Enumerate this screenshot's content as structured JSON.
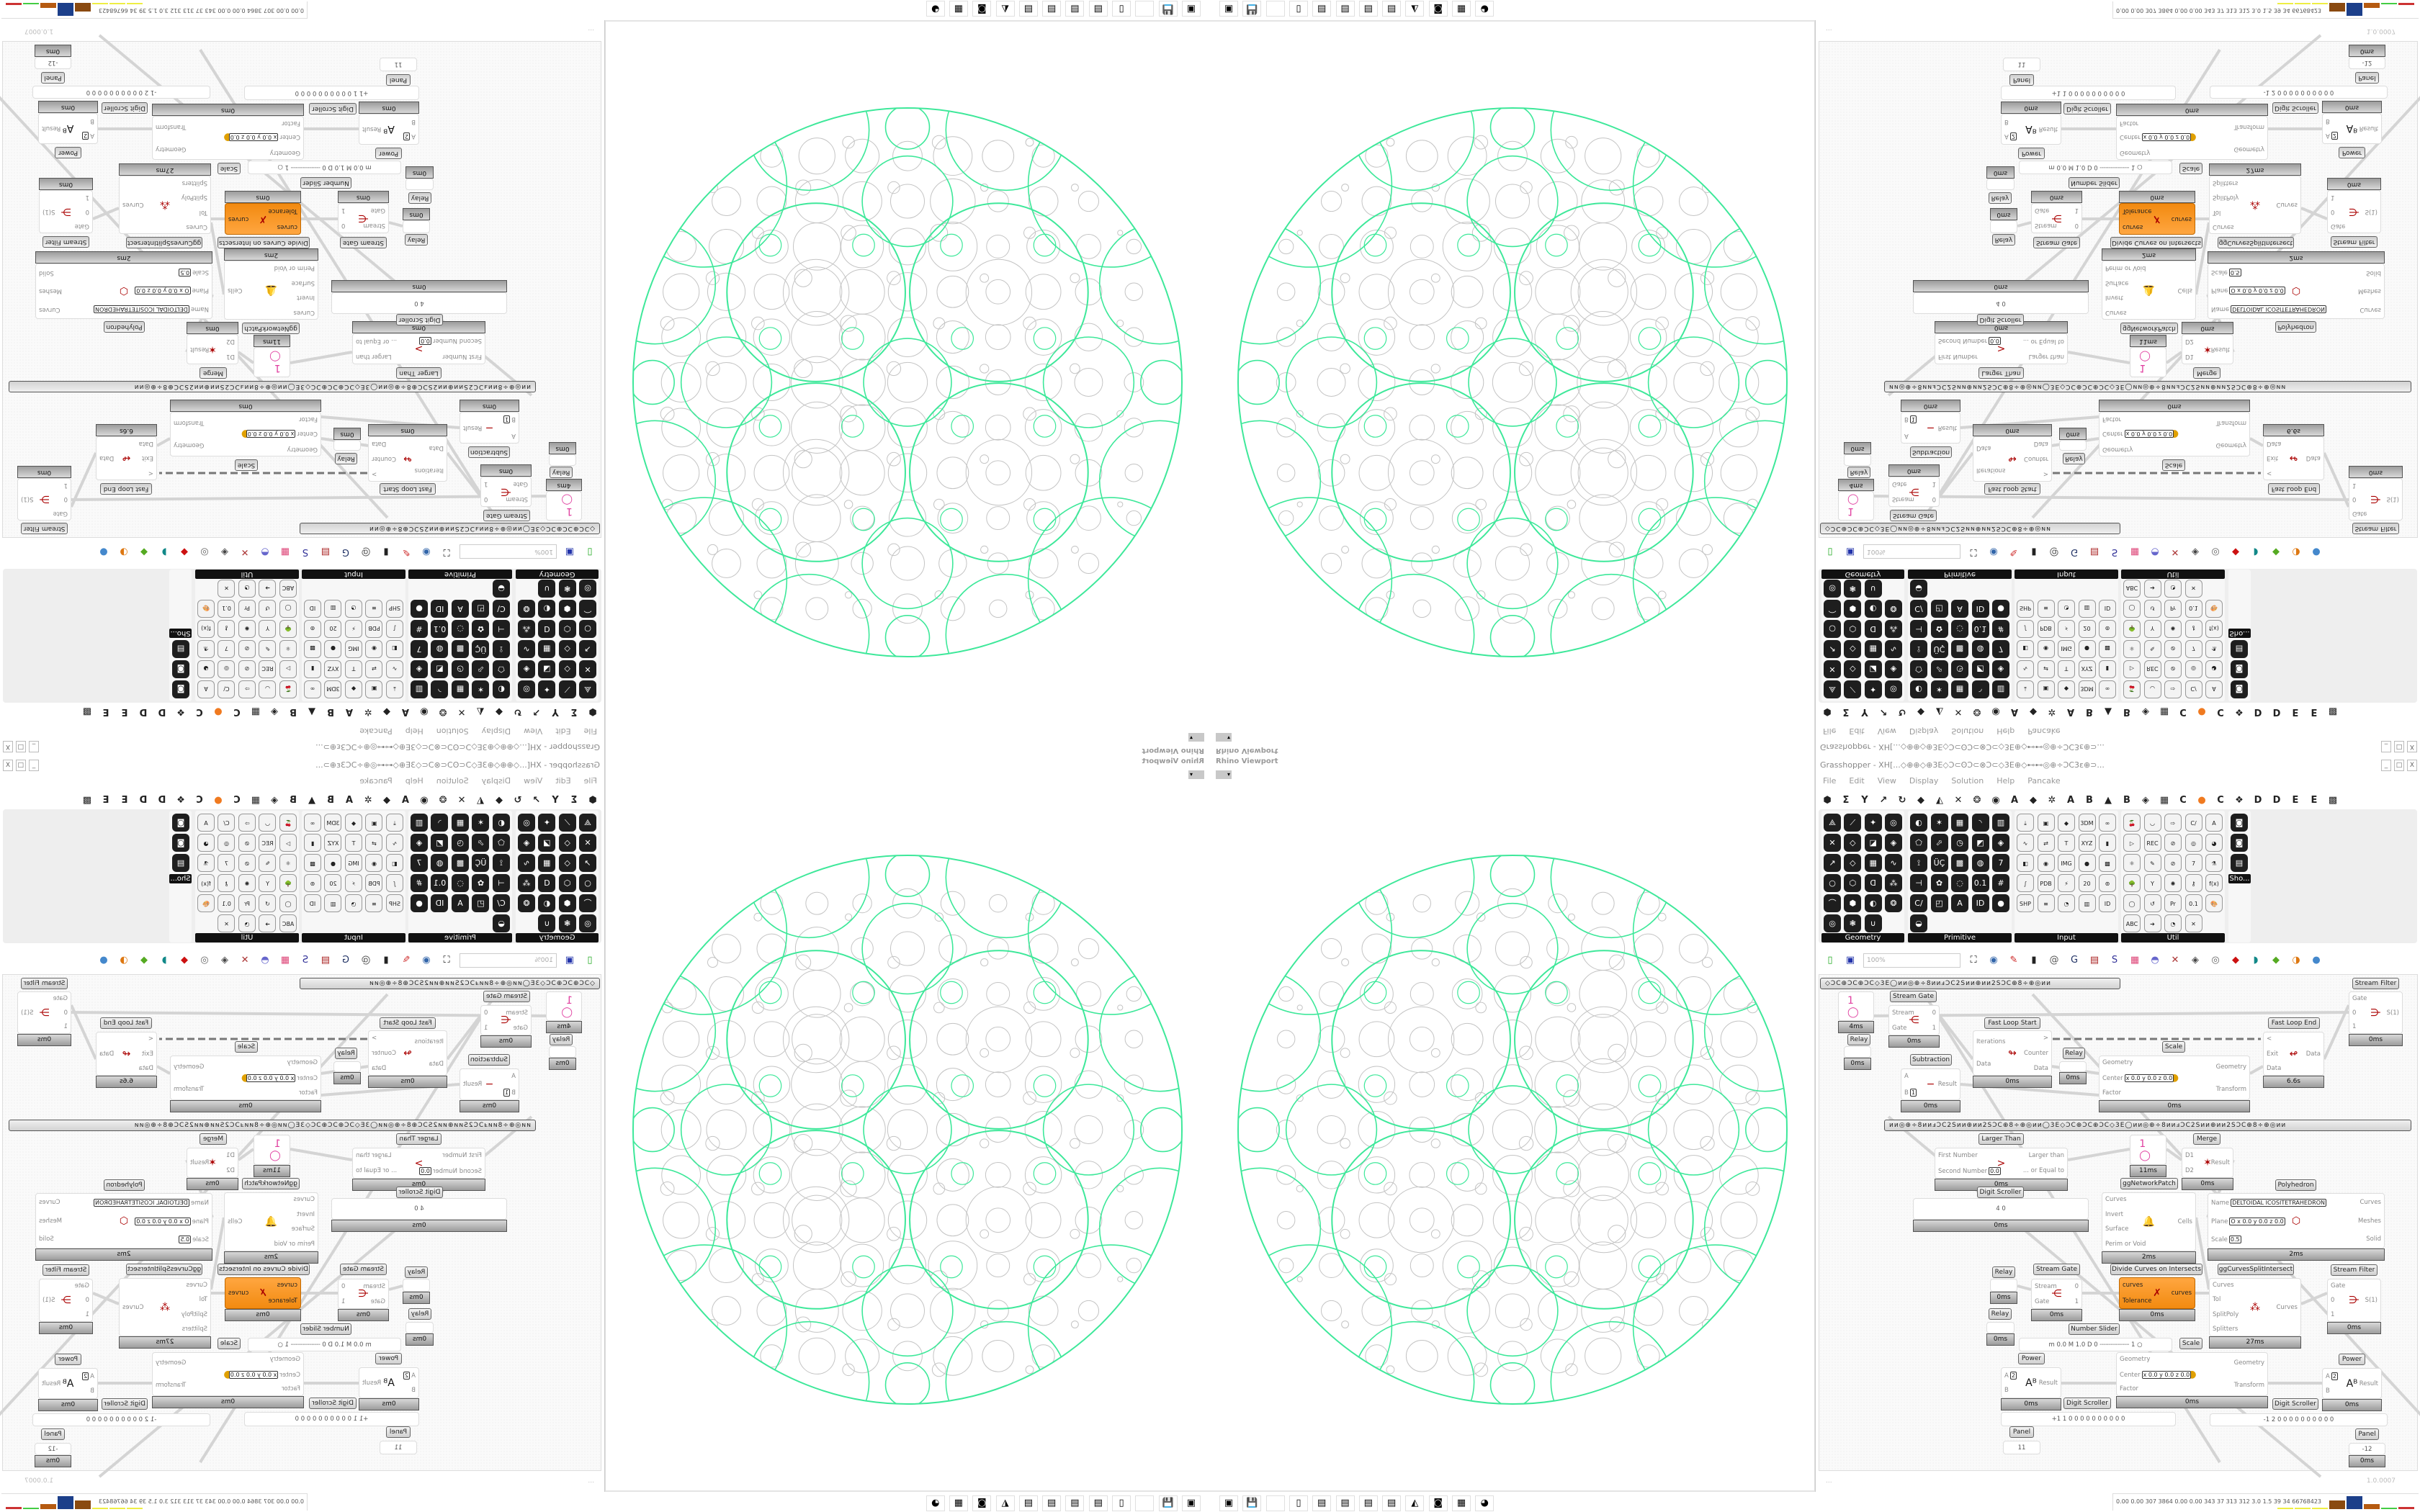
{
  "viewport": {
    "title": "Rhino Viewport",
    "dropdown": "▾"
  },
  "grasshopper": {
    "title": "Grasshopper - XH[...◇⊕⊕◇⊕3E◇Ɔ⊂ʘƆ⊂⊗Ɔ⊂◇3E⊕◇⊷⊷◎⊕÷ƆϹ3ɛ⊕⊃...",
    "window_buttons": [
      "_",
      "□",
      "X"
    ],
    "menu": [
      "File",
      "Edit",
      "View",
      "Display",
      "Solution",
      "Help",
      "Pancake"
    ],
    "tabs": [
      "⬢",
      "Σ",
      "Y",
      "↗",
      "↻",
      "◆",
      "◭",
      "✕",
      "❂",
      "◉",
      "A",
      "◆",
      "✲",
      "A",
      "B",
      "▲",
      "B",
      "◈",
      "▦",
      "C",
      "●",
      "C",
      "❖",
      "D",
      "D",
      "E",
      "E",
      "▩"
    ],
    "ribbon_panels": [
      {
        "label": "Geometry",
        "icons": [
          "⟁",
          "⟋",
          "✦",
          "◎",
          "✕",
          "◇",
          "◪",
          "◈",
          "↗",
          "◇",
          "▦",
          "∿",
          "○",
          "⬡",
          "ᗡ",
          "⁂",
          "⌒",
          "⬢",
          "◐",
          "❂",
          "◎",
          "❃",
          "∪"
        ]
      },
      {
        "label": "Primitive",
        "icons": [
          "◐",
          "✶",
          "▦",
          "◝",
          "▥",
          "⬠",
          "⬀",
          "◷",
          "◩",
          "◈",
          "⟟",
          "ÜÇ",
          "▩",
          "◍",
          "7",
          "⊣",
          "✿",
          "◌",
          "0.1",
          "#",
          "C/",
          "◰",
          "A",
          "ID",
          "●",
          "◒"
        ]
      },
      {
        "label": "Input",
        "icons": [
          "⤓",
          "▣",
          "◆",
          "3DM",
          "∞",
          "∿",
          "⇄",
          "T",
          "XYZ",
          "▮",
          "◧",
          "◉",
          "IMG",
          "●",
          "▩",
          "∫",
          "PDB",
          "⚡",
          "20",
          "⊚",
          "SHP",
          "≡",
          "◔",
          "▥",
          "ID"
        ]
      },
      {
        "label": "Util",
        "icons": [
          "🍒",
          "◡",
          "⇨",
          "C/",
          "A",
          "▷",
          "REC",
          "⊘",
          "◎",
          "◕",
          "⚛",
          "✎",
          "⊘",
          "7",
          "⚗",
          "🌳",
          "Y",
          "✺",
          "⚷",
          "f(x)",
          "◯",
          "↺",
          "Pr",
          "0.1",
          "🎨",
          "ABC",
          "➔",
          "◔",
          "✕"
        ]
      },
      {
        "label": "Sho...",
        "icons": [
          "◙",
          "◙",
          "▤"
        ]
      }
    ],
    "toolbar": {
      "zoom": "100%",
      "icons": [
        "new-document-icon",
        "save-icon",
        "zoom-extents-icon",
        "preview-eye-icon",
        "sketch-icon",
        "bake-icon",
        "email-icon",
        "gha-icon",
        "canvas-icon",
        "search-icon",
        "package-icon",
        "bulb-icon",
        "dna-icon",
        "shade-icon",
        "wire-icon",
        "red-gem-icon",
        "teal-icon",
        "green-icon",
        "orange-sphere-icon",
        "blue-sphere-icon"
      ]
    },
    "groups": [
      {
        "text": "◇ƆϹ⊕ƆϹ⊕ƆϹ◇3E◯ии◎⊕÷8ииⅎƆϹ2Sии⊕ии2SƆϹ⊕8÷⊕◎ии"
      },
      {
        "text": "ии◎⊕÷8ииⅎƆϹ2Sии⊕ии2SƆϹ⊕8÷⊕◎ии◯3E◇ƆϹ⊕ƆϹ⊕ƆϹ◇3E◯ии◎⊕÷8ииⅎƆϹ2Sии⊕ии2SƆϹ⊕8÷⊕◎ии"
      }
    ],
    "components": [
      {
        "name": "",
        "timing": "4ms",
        "inputs": [
          {
            "label": ""
          },
          {
            "label": ""
          }
        ],
        "outputs": [
          {
            "label": ""
          }
        ],
        "display": "1 ◯"
      },
      {
        "name": "Relay",
        "timing": "0ms",
        "inputs": [],
        "outputs": []
      },
      {
        "name": "Stream Gate",
        "timing": "0ms",
        "inputs": [
          {
            "label": "Stream"
          },
          {
            "label": "Gate"
          }
        ],
        "outputs": [
          {
            "label": "0"
          },
          {
            "label": "1"
          }
        ],
        "display": "⋲"
      },
      {
        "name": "Fast Loop Start",
        "timing": "0ms",
        "inputs": [
          {
            "label": "Iterations"
          },
          {
            "label": "Data"
          }
        ],
        "outputs": [
          {
            "label": ">"
          },
          {
            "label": "Counter"
          },
          {
            "label": "Data"
          }
        ],
        "display": "↬"
      },
      {
        "name": "Relay",
        "timing": "0ms",
        "inputs": [],
        "outputs": []
      },
      {
        "name": "Subtraction",
        "timing": "0ms",
        "inputs": [
          {
            "label": "A"
          },
          {
            "label": "B",
            "value": "1"
          }
        ],
        "outputs": [
          {
            "label": "Result"
          }
        ],
        "display": "−"
      },
      {
        "name": "Scale",
        "timing": "0ms",
        "inputs": [
          {
            "label": "Geometry"
          },
          {
            "label": "Center",
            "value": "x 0.0 y 0.0 z 0.0"
          },
          {
            "label": "Factor"
          }
        ],
        "outputs": [
          {
            "label": "Geometry"
          },
          {
            "label": "Transform"
          }
        ],
        "display": "●"
      },
      {
        "name": "Fast Loop End",
        "timing": "6.6s",
        "inputs": [
          {
            "label": "<"
          },
          {
            "label": "Exit"
          },
          {
            "label": "Data"
          }
        ],
        "outputs": [
          {
            "label": "Data"
          }
        ],
        "display": "↫"
      },
      {
        "name": "Stream Filter",
        "timing": "0ms",
        "inputs": [
          {
            "label": "Gate"
          },
          {
            "label": "0"
          },
          {
            "label": "1"
          }
        ],
        "outputs": [
          {
            "label": "S(1)"
          }
        ],
        "display": "⋺"
      },
      {
        "name": "Larger Than",
        "timing": "0ms",
        "inputs": [
          {
            "label": "First Number"
          },
          {
            "label": "Second Number",
            "value": "0.0"
          }
        ],
        "outputs": [
          {
            "label": "Larger than"
          },
          {
            "label": "... or Equal to"
          }
        ],
        "display": ">"
      },
      {
        "name": "Digit Scroller",
        "timing": "0ms",
        "inputs": [],
        "outputs": [],
        "display": "4 0"
      },
      {
        "name": "",
        "timing": "11ms",
        "inputs": [
          {
            "label": ""
          },
          {
            "label": ""
          }
        ],
        "outputs": [
          {
            "label": ""
          }
        ],
        "display": "1 ◯"
      },
      {
        "name": "Merge",
        "timing": "0ms",
        "inputs": [
          {
            "label": "D1"
          },
          {
            "label": "D2"
          }
        ],
        "outputs": [
          {
            "label": "Result"
          }
        ],
        "display": "✶"
      },
      {
        "name": "ggNetworkPatch",
        "timing": "2ms",
        "inputs": [
          {
            "label": "Curves"
          },
          {
            "label": "Invert"
          },
          {
            "label": "Surface"
          },
          {
            "label": "Perim or Void"
          }
        ],
        "outputs": [
          {
            "label": "Cells"
          }
        ],
        "display": "🔔"
      },
      {
        "name": "Polyhedron",
        "timing": "2ms",
        "inputs": [
          {
            "label": "Name",
            "value": "DELTOIDAL ICOSITETRAHEDRON"
          },
          {
            "label": "Plane",
            "value": "O x 0.0 y 0.0 z 0.0"
          },
          {
            "label": "Scale",
            "value": "0.5"
          }
        ],
        "outputs": [
          {
            "label": "Curves"
          },
          {
            "label": "Meshes"
          },
          {
            "label": "Solid"
          }
        ],
        "display": "⬡"
      },
      {
        "name": "Relay",
        "timing": "0ms",
        "inputs": [],
        "outputs": []
      },
      {
        "name": "Relay",
        "timing": "0ms",
        "inputs": [],
        "outputs": []
      },
      {
        "name": "Stream Gate",
        "timing": "0ms",
        "inputs": [
          {
            "label": "Stream"
          },
          {
            "label": "Gate"
          }
        ],
        "outputs": [
          {
            "label": "0"
          },
          {
            "label": "1"
          }
        ],
        "display": "⋲"
      },
      {
        "name": "Divide Curves on Intersects",
        "timing": "0ms",
        "inputs": [
          {
            "label": "curves"
          },
          {
            "label": "Tolerance"
          }
        ],
        "outputs": [
          {
            "label": "curves"
          }
        ],
        "display": "✗"
      },
      {
        "name": "ggCurvesSplitIntersect",
        "timing": "27ms",
        "inputs": [
          {
            "label": "Curves"
          },
          {
            "label": "Tol"
          },
          {
            "label": "SplitPoly"
          },
          {
            "label": "Splitters"
          }
        ],
        "outputs": [
          {
            "label": "Curves"
          }
        ],
        "display": "⁂"
      },
      {
        "name": "Stream Filter",
        "timing": "0ms",
        "inputs": [
          {
            "label": "Gate"
          },
          {
            "label": "0"
          },
          {
            "label": "1"
          }
        ],
        "outputs": [
          {
            "label": "S(1)"
          }
        ],
        "display": "⋺"
      },
      {
        "name": "Number Slider",
        "timing": "",
        "inputs": [],
        "outputs": [],
        "display": "m 0.0 M 1.0 D 0 ┄┄┄┄┄┄┄┄ 1 ○"
      },
      {
        "name": "Scale",
        "timing": "0ms",
        "inputs": [
          {
            "label": "Geometry"
          },
          {
            "label": "Center",
            "value": "x 0.0 y 0.0 z 0.0"
          },
          {
            "label": "Factor"
          }
        ],
        "outputs": [
          {
            "label": "Geometry"
          },
          {
            "label": "Transform"
          }
        ],
        "display": "●"
      },
      {
        "name": "Power",
        "timing": "0ms",
        "inputs": [
          {
            "label": "A",
            "value": "2"
          },
          {
            "label": "B"
          }
        ],
        "outputs": [
          {
            "label": "Result"
          }
        ],
        "display": "Aᴮ"
      },
      {
        "name": "Digit Scroller",
        "timing": "",
        "inputs": [],
        "outputs": [],
        "display": "+1 1 0 0 0 0 0 0 0 0 0 0"
      },
      {
        "name": "Panel",
        "timing": "",
        "inputs": [],
        "outputs": [],
        "display": "11"
      },
      {
        "name": "Power",
        "timing": "0ms",
        "inputs": [
          {
            "label": "A",
            "value": "2"
          },
          {
            "label": "B"
          }
        ],
        "outputs": [
          {
            "label": "Result"
          }
        ],
        "display": "Aᴮ"
      },
      {
        "name": "Digit Scroller",
        "timing": "",
        "inputs": [],
        "outputs": [],
        "display": "-1 2 0 0 0 0 0 0 0 0 0 0"
      },
      {
        "name": "Panel",
        "timing": "0ms",
        "inputs": [],
        "outputs": [],
        "display": "-12"
      }
    ],
    "status": {
      "left": "...",
      "version": "1.0.0007"
    }
  },
  "taskbar": {
    "icons": [
      "usb-drive-icon",
      "floppy-64-icon",
      "blank-icon",
      "folder-icon",
      "notepad-icon",
      "notepad-icon",
      "notepad-icon",
      "notepad-icon",
      "inkscape-icon",
      "rhino-icon",
      "calculator-icon",
      "firefox-icon"
    ]
  },
  "stats": {
    "text": "0.00 0.00 307 3864 0.00 0.00 343 37 313 312 3.0 1.5 39 34 66768423"
  },
  "colors": {
    "curve_green": "#3ee89a",
    "pattern_gray": "#c4c4c4",
    "component_orange": "#f7941d",
    "label_dark": "#111111"
  }
}
